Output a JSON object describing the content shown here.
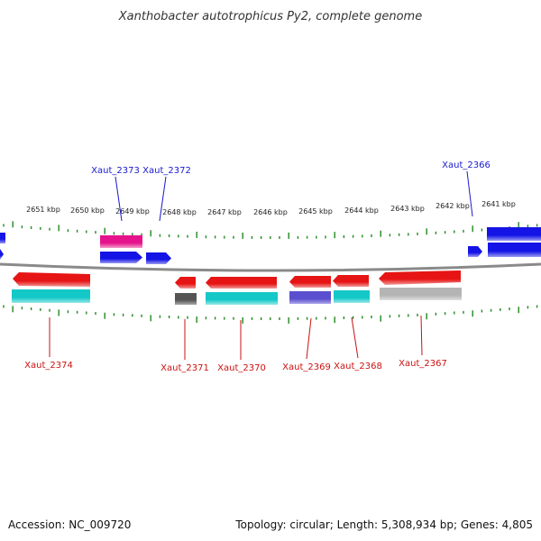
{
  "title": "Xanthobacter autotrophicus Py2, complete genome",
  "footer": {
    "accession": "Accession: NC_009720",
    "summary": "Topology: circular; Length: 5,308,934 bp; Genes: 4,805"
  },
  "colors": {
    "backbone": "#8a8a8a",
    "tick": "#1f8a1f",
    "forward_label": "#1a1acc",
    "reverse_label": "#cc1111",
    "blue": "#1414e6",
    "magenta": "#e6148c",
    "red": "#e61414",
    "cyan": "#14c8c8",
    "gray": "#555555",
    "purple": "#5a4fcf",
    "silver": "#bbbbbb"
  },
  "kbp_ticks": [
    {
      "label": "2651 kbp"
    },
    {
      "label": "2650 kbp"
    },
    {
      "label": "2649 kbp"
    },
    {
      "label": "2648 kbp"
    },
    {
      "label": "2647 kbp"
    },
    {
      "label": "2646 kbp"
    },
    {
      "label": "2645 kbp"
    },
    {
      "label": "2644 kbp"
    },
    {
      "label": "2643 kbp"
    },
    {
      "label": "2642 kbp"
    },
    {
      "label": "2641 kbp"
    }
  ],
  "gene_labels": {
    "forward": [
      "Xaut_2373",
      "Xaut_2372",
      "Xaut_2366"
    ],
    "reverse": [
      "Xaut_2374",
      "Xaut_2371",
      "Xaut_2370",
      "Xaut_2369",
      "Xaut_2368",
      "Xaut_2367"
    ]
  }
}
